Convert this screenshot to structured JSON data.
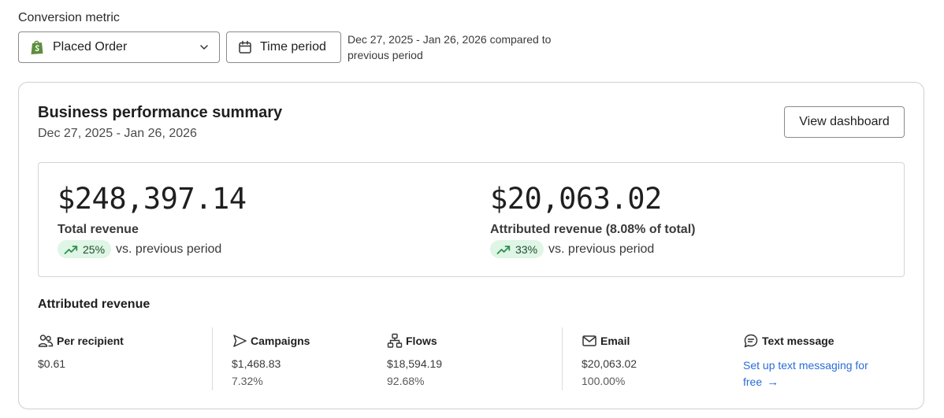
{
  "filters": {
    "conversion_metric_label": "Conversion metric",
    "metric_value": "Placed Order",
    "time_period_label": "Time period",
    "period_note": "Dec 27, 2025 - Jan 26, 2026 compared to previous period"
  },
  "summary": {
    "title": "Business performance summary",
    "date_range": "Dec 27, 2025 - Jan 26, 2026",
    "view_dashboard_label": "View dashboard",
    "total_revenue": {
      "value": "$248,397.14",
      "label": "Total revenue",
      "change": "25%",
      "change_suffix": "vs. previous period"
    },
    "attributed_revenue": {
      "value": "$20,063.02",
      "label": "Attributed revenue (8.08% of total)",
      "change": "33%",
      "change_suffix": "vs. previous period"
    }
  },
  "attributed": {
    "title": "Attributed revenue",
    "per_recipient": {
      "label": "Per recipient",
      "value": "$0.61"
    },
    "campaigns": {
      "label": "Campaigns",
      "value": "$1,468.83",
      "percent": "7.32%"
    },
    "flows": {
      "label": "Flows",
      "value": "$18,594.19",
      "percent": "92.68%"
    },
    "email": {
      "label": "Email",
      "value": "$20,063.02",
      "percent": "100.00%"
    },
    "text_message": {
      "label": "Text message",
      "link_text": "Set up text messaging for free"
    }
  },
  "colors": {
    "positive_pill_bg": "#dff5e5",
    "positive_trend": "#2f8f4e",
    "link": "#2a6cd8",
    "shopify_green": "#5e8e3e"
  },
  "icons": {
    "metric": "shopify-bag-icon",
    "time": "calendar-icon",
    "per_recipient": "users-icon",
    "campaigns": "send-icon",
    "flows": "flow-icon",
    "email": "mail-icon",
    "text_message": "chat-icon",
    "trend": "trend-up-icon"
  }
}
